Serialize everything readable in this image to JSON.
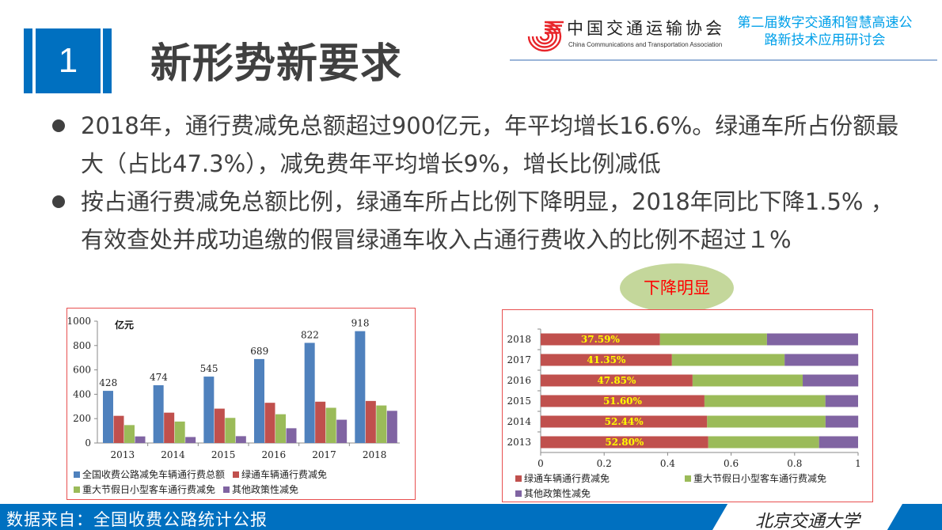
{
  "header": {
    "section_number": "1",
    "title": "新形势新要求",
    "logo_cn": "中国交通运输协会",
    "logo_en": "China Communications and Transportation Association",
    "conference_line1": "第二届数字交通和智慧高速公",
    "conference_line2": "路新技术应用研讨会",
    "accent_color": "#0070c0"
  },
  "bullets": [
    {
      "line1": "2018年，通行费减免总额超过900亿元，年平均增长16.6%。绿通车所占份额最",
      "line2": "大（占比47.3%），减免费年平均增长9%，增长比例减低"
    },
    {
      "line1": "按占通行费减免总额比例，绿通车所占比例下降明显，2018年同比下降1.5% ，",
      "line2": "有效查处并成功追缴的假冒绿通车收入占通行费收入的比例不超过１%"
    }
  ],
  "callout": {
    "text": "下降明显"
  },
  "footer": {
    "source": "数据来自：全国收费公路统计公报",
    "university": "北京交通大学"
  },
  "chart_data": [
    {
      "type": "bar",
      "title": "",
      "unit_label": "亿元",
      "xlabel": "",
      "ylabel": "亿元",
      "ylim": [
        0,
        1000
      ],
      "yticks": [
        0,
        200,
        400,
        600,
        800,
        1000
      ],
      "grid": false,
      "legend_position": "bottom",
      "categories": [
        "2013",
        "2014",
        "2015",
        "2016",
        "2017",
        "2018"
      ],
      "series": [
        {
          "name": "全国收费公路减免车辆通行费总额",
          "color": "#4f81bd",
          "values": [
            428,
            474,
            545,
            689,
            822,
            918
          ],
          "labels_shown": true
        },
        {
          "name": "绿通车辆通行费减免",
          "color": "#c0504d",
          "values": [
            223,
            249,
            282,
            330,
            339,
            345
          ]
        },
        {
          "name": "重大节假日小型客车通行费减免",
          "color": "#9bbb59",
          "values": [
            147,
            176,
            206,
            236,
            289,
            308
          ]
        },
        {
          "name": "其他政策性减免",
          "color": "#8064a2",
          "values": [
            54,
            49,
            56,
            121,
            191,
            264
          ]
        }
      ]
    },
    {
      "type": "bar",
      "orientation": "horizontal",
      "stacked": "percent",
      "title": "",
      "xlim": [
        0,
        1
      ],
      "xticks": [
        "0",
        "0.2",
        "0.4",
        "0.6",
        "0.8",
        "1"
      ],
      "grid": false,
      "legend_position": "bottom",
      "categories": [
        "2018",
        "2017",
        "2016",
        "2015",
        "2014",
        "2013"
      ],
      "series": [
        {
          "name": "绿通车辆通行费减免",
          "color": "#c0504d",
          "values": [
            0.3759,
            0.4135,
            0.4785,
            0.516,
            0.5244,
            0.528
          ],
          "labels": [
            "37.59%",
            "41.35%",
            "47.85%",
            "51.60%",
            "52.44%",
            "52.80%"
          ]
        },
        {
          "name": "重大节假日小型客车通行费减免",
          "color": "#9bbb59",
          "values": [
            0.337,
            0.355,
            0.347,
            0.381,
            0.373,
            0.349
          ]
        },
        {
          "name": "其他政策性减免",
          "color": "#8064a2",
          "values": [
            0.287,
            0.232,
            0.175,
            0.103,
            0.103,
            0.123
          ]
        }
      ],
      "label_color": "#ffff00",
      "annotation": "下降明显"
    }
  ]
}
